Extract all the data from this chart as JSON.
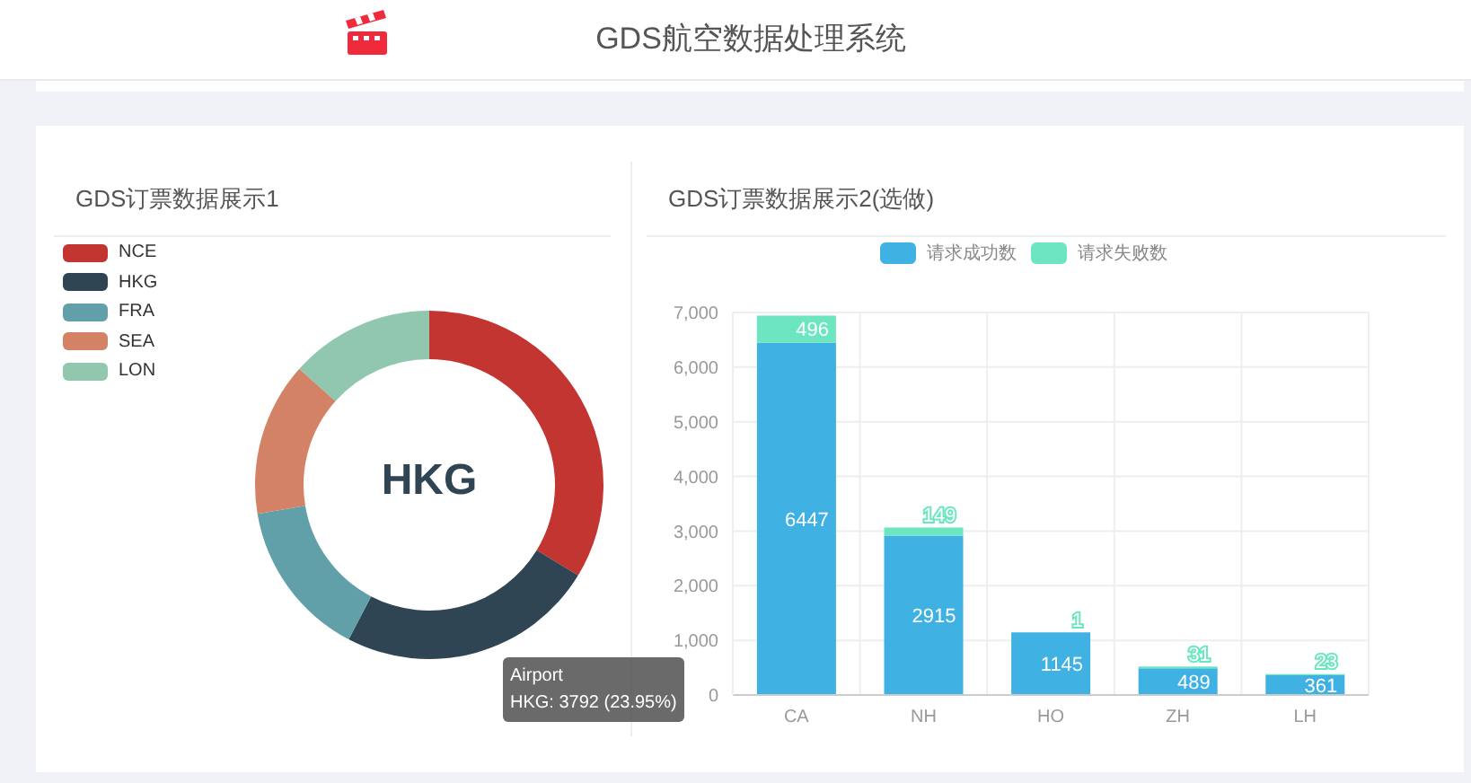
{
  "chart_data": [
    {
      "type": "other",
      "title": "GDS航空数据处理系统"
    },
    {
      "type": "donut",
      "title": "GDS订票数据展示1",
      "categories": [
        "NCE",
        "HKG",
        "FRA",
        "SEA",
        "LON"
      ],
      "values": [
        33.7,
        23.95,
        14.7,
        14.25,
        13.4
      ],
      "colors": [
        "#c23531",
        "#2f4554",
        "#61a0a8",
        "#d48265",
        "#91c7ae"
      ],
      "legend": "top left",
      "annotations": [
        "HKG",
        "Airport",
        "HKG: 3792 (23.95%)"
      ]
    },
    {
      "type": "bar",
      "title": "GDS订票数据展示2(选做)",
      "categories": [
        "CA",
        "NH",
        "HO",
        "ZH",
        "LH"
      ],
      "stacked": true,
      "series": [
        {
          "name": "请求成功数",
          "color": "#3fb1e3",
          "values": [
            6447,
            2915,
            1145,
            489,
            361
          ]
        },
        {
          "name": "请求失败数",
          "color": "#6be6c1",
          "values": [
            496,
            149,
            1,
            31,
            23
          ]
        }
      ],
      "ylim": [
        0,
        7000
      ],
      "yticks": [
        0,
        {
          "value": 1000,
          "label": "1,000"
        },
        {
          "value": 2000,
          "label": "2,000"
        },
        {
          "value": 3000,
          "label": "3,000"
        },
        {
          "value": 4000,
          "label": "4,000"
        },
        {
          "value": 5000,
          "label": "5,000"
        },
        {
          "value": 6000,
          "label": "6,000"
        },
        {
          "value": 7000,
          "label": "7,000"
        }
      ],
      "grid": true,
      "legend": "top",
      "data_labels": true
    }
  ]
}
